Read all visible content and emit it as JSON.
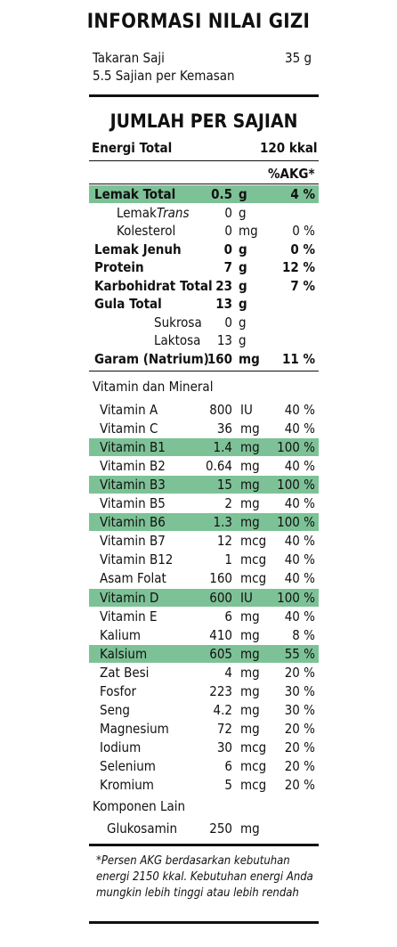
{
  "title": "INFORMASI NILAI GIZI",
  "serving": {
    "size_label": "Takaran Saji",
    "size_value": "35 g",
    "per_pack": "5.5 Sajian per Kemasan"
  },
  "per_serving_heading": "JUMLAH PER SAJIAN",
  "energy": {
    "label": "Energi Total",
    "value": "120",
    "unit": "kkal"
  },
  "akg_heading": "%AKG*",
  "nutrients": [
    {
      "label": "Lemak Total",
      "amount": "0.5",
      "unit": "g",
      "akg": "4 %",
      "bold": true,
      "highlight": true
    },
    {
      "label": "Lemak ",
      "label_em": "Trans",
      "amount": "0",
      "unit": "g",
      "akg": "",
      "bold": false,
      "highlight": false,
      "indent": 1
    },
    {
      "label": "Kolesterol",
      "amount": "0",
      "unit": "mg",
      "akg": "0 %",
      "bold": false,
      "highlight": false,
      "indent": 1
    },
    {
      "label": "Lemak Jenuh",
      "amount": "0",
      "unit": "g",
      "akg": "0 %",
      "bold": true,
      "highlight": false
    },
    {
      "label": "Protein",
      "amount": "7",
      "unit": "g",
      "akg": "12 %",
      "bold": true,
      "highlight": false
    },
    {
      "label": "Karbohidrat Total",
      "amount": "23",
      "unit": "g",
      "akg": "7 %",
      "bold": true,
      "highlight": false
    },
    {
      "label": "Gula Total",
      "amount": "13",
      "unit": "g",
      "akg": "",
      "bold": true,
      "highlight": false
    },
    {
      "label": "Sukrosa",
      "amount": "0",
      "unit": "g",
      "akg": "",
      "bold": false,
      "highlight": false,
      "indent": 2
    },
    {
      "label": "Laktosa",
      "amount": "13",
      "unit": "g",
      "akg": "",
      "bold": false,
      "highlight": false,
      "indent": 2
    },
    {
      "label": "Garam (Natrium)",
      "amount": "160",
      "unit": "mg",
      "akg": "11 %",
      "bold": true,
      "highlight": false
    }
  ],
  "vitamins_heading": "Vitamin dan Mineral",
  "vitamins": [
    {
      "label": "Vitamin A",
      "amount": "800",
      "unit": "IU",
      "akg": "40 %",
      "highlight": false
    },
    {
      "label": "Vitamin C",
      "amount": "36",
      "unit": "mg",
      "akg": "40 %",
      "highlight": false
    },
    {
      "label": "Vitamin B1",
      "amount": "1.4",
      "unit": "mg",
      "akg": "100 %",
      "highlight": true
    },
    {
      "label": "Vitamin B2",
      "amount": "0.64",
      "unit": "mg",
      "akg": "40 %",
      "highlight": false
    },
    {
      "label": "Vitamin B3",
      "amount": "15",
      "unit": "mg",
      "akg": "100 %",
      "highlight": true
    },
    {
      "label": "Vitamin B5",
      "amount": "2",
      "unit": "mg",
      "akg": "40 %",
      "highlight": false
    },
    {
      "label": "Vitamin B6",
      "amount": "1.3",
      "unit": "mg",
      "akg": "100 %",
      "highlight": true
    },
    {
      "label": "Vitamin B7",
      "amount": "12",
      "unit": "mcg",
      "akg": "40 %",
      "highlight": false
    },
    {
      "label": "Vitamin B12",
      "amount": "1",
      "unit": "mcg",
      "akg": "40 %",
      "highlight": false
    },
    {
      "label": "Asam Folat",
      "amount": "160",
      "unit": "mcg",
      "akg": "40 %",
      "highlight": false
    },
    {
      "label": "Vitamin D",
      "amount": "600",
      "unit": "IU",
      "akg": "100 %",
      "highlight": true
    },
    {
      "label": "Vitamin E",
      "amount": "6",
      "unit": "mg",
      "akg": "40 %",
      "highlight": false
    },
    {
      "label": "Kalium",
      "amount": "410",
      "unit": "mg",
      "akg": "8 %",
      "highlight": false
    },
    {
      "label": "Kalsium",
      "amount": "605",
      "unit": "mg",
      "akg": "55 %",
      "highlight": true
    },
    {
      "label": "Zat Besi",
      "amount": "4",
      "unit": "mg",
      "akg": "20 %",
      "highlight": false
    },
    {
      "label": "Fosfor",
      "amount": "223",
      "unit": "mg",
      "akg": "30 %",
      "highlight": false
    },
    {
      "label": "Seng",
      "amount": "4.2",
      "unit": "mg",
      "akg": "30 %",
      "highlight": false
    },
    {
      "label": "Magnesium",
      "amount": "72",
      "unit": "mg",
      "akg": "20 %",
      "highlight": false
    },
    {
      "label": "Iodium",
      "amount": "30",
      "unit": "mcg",
      "akg": "20 %",
      "highlight": false
    },
    {
      "label": "Selenium",
      "amount": "6",
      "unit": "mcg",
      "akg": "20 %",
      "highlight": false
    },
    {
      "label": "Kromium",
      "amount": "5",
      "unit": "mcg",
      "akg": "20 %",
      "highlight": false
    }
  ],
  "other_heading": "Komponen Lain",
  "other": [
    {
      "label": "Glukosamin",
      "amount": "250",
      "unit": "mg"
    }
  ],
  "footnote": "*Persen AKG berdasarkan kebutuhan energi 2150 kkal. Kebutuhan energi Anda mungkin lebih tinggi atau lebih rendah",
  "colors": {
    "highlight": "#7dc297",
    "rule": "#111111"
  }
}
